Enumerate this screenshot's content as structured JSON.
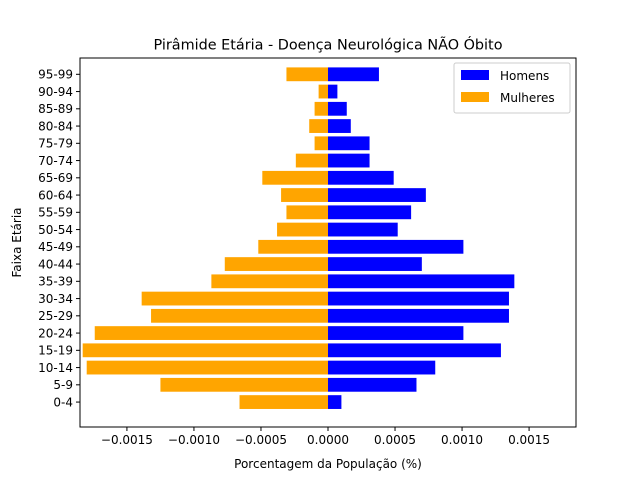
{
  "chart_data": {
    "type": "bar",
    "orientation": "horizontal",
    "title": "Pirâmide Etária - Doença Neurológica NÃO Óbito",
    "xlabel": "Porcentagem da População (%)",
    "ylabel": "Faixa Etária",
    "xlim": [
      -0.00185,
      0.00185
    ],
    "xticks": [
      -0.0015,
      -0.001,
      -0.0005,
      0.0,
      0.0005,
      0.001,
      0.0015
    ],
    "xtick_labels": [
      "−0.0015",
      "−0.0010",
      "−0.0005",
      "0.0000",
      "0.0005",
      "0.0010",
      "0.0015"
    ],
    "categories": [
      "0-4",
      "5-9",
      "10-14",
      "15-19",
      "20-24",
      "25-29",
      "30-34",
      "35-39",
      "40-44",
      "45-49",
      "50-54",
      "55-59",
      "60-64",
      "65-69",
      "70-74",
      "75-79",
      "80-84",
      "85-89",
      "90-94",
      "95-99"
    ],
    "series": [
      {
        "name": "Homens",
        "color": "#0000ff",
        "values": [
          0.0001,
          0.00066,
          0.0008,
          0.00129,
          0.00101,
          0.00135,
          0.00135,
          0.00139,
          0.0007,
          0.00101,
          0.00052,
          0.00062,
          0.00073,
          0.00049,
          0.00031,
          0.00031,
          0.00017,
          0.00014,
          7e-05,
          0.00038
        ]
      },
      {
        "name": "Mulheres",
        "color": "#ffa500",
        "values": [
          -0.00066,
          -0.00125,
          -0.0018,
          -0.00183,
          -0.00174,
          -0.00132,
          -0.00139,
          -0.00087,
          -0.00077,
          -0.00052,
          -0.00038,
          -0.00031,
          -0.00035,
          -0.00049,
          -0.00024,
          -0.0001,
          -0.00014,
          -0.0001,
          -7e-05,
          -0.00031
        ]
      }
    ],
    "legend_position": "upper-right",
    "grid": false
  }
}
